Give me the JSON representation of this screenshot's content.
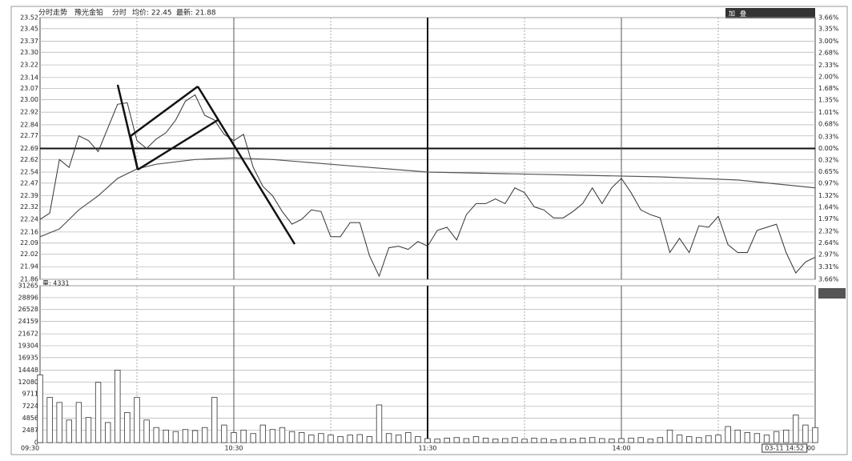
{
  "chart_data": {
    "type": "line",
    "title": "分时走势",
    "stock_name": "豫光金铅",
    "period": "分时",
    "avg_label": "均价: 22.45",
    "last_label": "最新: 21.88",
    "toolbar": [
      "加",
      "叠"
    ],
    "volume_label": "量: 4331",
    "xlim": [
      0,
      240
    ],
    "xticks": [
      {
        "value": 0,
        "label": "09:30"
      },
      {
        "value": 60,
        "label": "10:30"
      },
      {
        "value": 120,
        "label": "11:30"
      },
      {
        "value": 180,
        "label": "14:00"
      },
      {
        "value": 240,
        "label": "15:00"
      }
    ],
    "cursor": {
      "value": 232,
      "label": "03-11 14:52"
    },
    "ylim": [
      21.86,
      23.52
    ],
    "yticks": [
      {
        "value": 23.52,
        "label": "23.52"
      },
      {
        "value": 23.45,
        "label": "23.45"
      },
      {
        "value": 23.37,
        "label": "23.37"
      },
      {
        "value": 23.3,
        "label": "23.30"
      },
      {
        "value": 23.22,
        "label": "23.22"
      },
      {
        "value": 23.14,
        "label": "23.14"
      },
      {
        "value": 23.07,
        "label": "23.07"
      },
      {
        "value": 23.0,
        "label": "23.00"
      },
      {
        "value": 22.92,
        "label": "22.92"
      },
      {
        "value": 22.84,
        "label": "22.84"
      },
      {
        "value": 22.77,
        "label": "22.77"
      },
      {
        "value": 22.69,
        "label": "22.69"
      },
      {
        "value": 22.62,
        "label": "22.62"
      },
      {
        "value": 22.54,
        "label": "22.54"
      },
      {
        "value": 22.47,
        "label": "22.47"
      },
      {
        "value": 22.39,
        "label": "22.39"
      },
      {
        "value": 22.32,
        "label": "22.32"
      },
      {
        "value": 22.24,
        "label": "22.24"
      },
      {
        "value": 22.16,
        "label": "22.16"
      },
      {
        "value": 22.09,
        "label": "22.09"
      },
      {
        "value": 22.02,
        "label": "22.02"
      },
      {
        "value": 21.94,
        "label": "21.94"
      },
      {
        "value": 21.86,
        "label": "21.86"
      }
    ],
    "y2lim": [
      -3.66,
      3.66
    ],
    "y2ticks": [
      {
        "value": 3.66,
        "label": "3.66%"
      },
      {
        "value": 3.35,
        "label": "3.35%"
      },
      {
        "value": 3.0,
        "label": "3.00%"
      },
      {
        "value": 2.68,
        "label": "2.68%"
      },
      {
        "value": 2.33,
        "label": "2.33%"
      },
      {
        "value": 2.0,
        "label": "2.00%"
      },
      {
        "value": 1.68,
        "label": "1.68%"
      },
      {
        "value": 1.35,
        "label": "1.35%"
      },
      {
        "value": 1.01,
        "label": "1.01%"
      },
      {
        "value": 0.68,
        "label": "0.68%"
      },
      {
        "value": 0.33,
        "label": "0.33%"
      },
      {
        "value": 0,
        "label": "0.00%"
      },
      {
        "value": -0.32,
        "label": "0.32%"
      },
      {
        "value": -0.65,
        "label": "0.65%"
      },
      {
        "value": -0.97,
        "label": "0.97%"
      },
      {
        "value": -1.32,
        "label": "1.32%"
      },
      {
        "value": -1.64,
        "label": "1.64%"
      },
      {
        "value": -1.97,
        "label": "1.97%"
      },
      {
        "value": -2.32,
        "label": "2.32%"
      },
      {
        "value": -2.64,
        "label": "2.64%"
      },
      {
        "value": -2.97,
        "label": "2.97%"
      },
      {
        "value": -3.31,
        "label": "3.31%"
      },
      {
        "value": -3.66,
        "label": "3.66%"
      }
    ],
    "x": [
      0,
      3,
      6,
      9,
      12,
      15,
      18,
      21,
      24,
      27,
      30,
      33,
      36,
      39,
      42,
      45,
      48,
      51,
      54,
      57,
      60,
      63,
      66,
      69,
      72,
      75,
      78,
      81,
      84,
      87,
      90,
      93,
      96,
      99,
      102,
      105,
      108,
      111,
      114,
      117,
      120,
      123,
      126,
      129,
      132,
      135,
      138,
      141,
      144,
      147,
      150,
      153,
      156,
      159,
      162,
      165,
      168,
      171,
      174,
      177,
      180,
      183,
      186,
      189,
      192,
      195,
      198,
      201,
      204,
      207,
      210,
      213,
      216,
      219,
      222,
      225,
      228,
      231,
      234,
      237,
      240
    ],
    "price": [
      22.24,
      22.28,
      22.62,
      22.57,
      22.77,
      22.74,
      22.67,
      22.82,
      22.97,
      22.98,
      22.74,
      22.69,
      22.75,
      22.79,
      22.87,
      22.99,
      23.03,
      22.9,
      22.87,
      22.78,
      22.74,
      22.78,
      22.57,
      22.45,
      22.39,
      22.29,
      22.21,
      22.24,
      22.3,
      22.29,
      22.13,
      22.13,
      22.22,
      22.22,
      22.01,
      21.88,
      22.06,
      22.07,
      22.05,
      22.1,
      22.07,
      22.17,
      22.19,
      22.11,
      22.27,
      22.34,
      22.34,
      22.37,
      22.34,
      22.44,
      22.41,
      22.32,
      22.3,
      22.25,
      22.25,
      22.29,
      22.34,
      22.44,
      22.34,
      22.44,
      22.5,
      22.41,
      22.3,
      22.27,
      22.25,
      22.03,
      22.12,
      22.03,
      22.2,
      22.19,
      22.26,
      22.08,
      22.03,
      22.03,
      22.17,
      22.19,
      22.21,
      22.03,
      21.9,
      21.97,
      22.0
    ],
    "avg_x": [
      0,
      6,
      12,
      18,
      24,
      30,
      36,
      48,
      60,
      72,
      96,
      120,
      144,
      168,
      192,
      216,
      240
    ],
    "avg": [
      22.13,
      22.18,
      22.3,
      22.39,
      22.5,
      22.56,
      22.59,
      22.62,
      22.63,
      22.62,
      22.58,
      22.54,
      22.53,
      22.52,
      22.51,
      22.49,
      22.44
    ],
    "vlim": [
      0,
      31265
    ],
    "vticks": [
      31265,
      28896,
      26528,
      24159,
      21672,
      19304,
      16935,
      14448,
      12080,
      9711,
      7224,
      4856,
      2487,
      0
    ],
    "volume": [
      13500,
      9000,
      8000,
      4500,
      8000,
      5000,
      12000,
      4000,
      14448,
      6000,
      9000,
      4500,
      3000,
      2500,
      2200,
      2600,
      2400,
      3000,
      9000,
      3500,
      2000,
      2500,
      1800,
      3500,
      2600,
      3000,
      2200,
      2000,
      1500,
      1800,
      1500,
      1200,
      1500,
      1600,
      1200,
      7500,
      1800,
      1500,
      2000,
      1200,
      800,
      700,
      900,
      1000,
      800,
      1200,
      900,
      700,
      800,
      1000,
      700,
      900,
      800,
      600,
      800,
      700,
      900,
      1000,
      800,
      700,
      800,
      900,
      1000,
      700,
      1000,
      2500,
      1500,
      1200,
      1000,
      1400,
      1500,
      3200,
      2500,
      2000,
      1800,
      1500,
      2200,
      2500,
      5500,
      3500,
      3000
    ],
    "line_color": "#333333",
    "avg_color": "#555555",
    "bar_color": "#333333"
  }
}
